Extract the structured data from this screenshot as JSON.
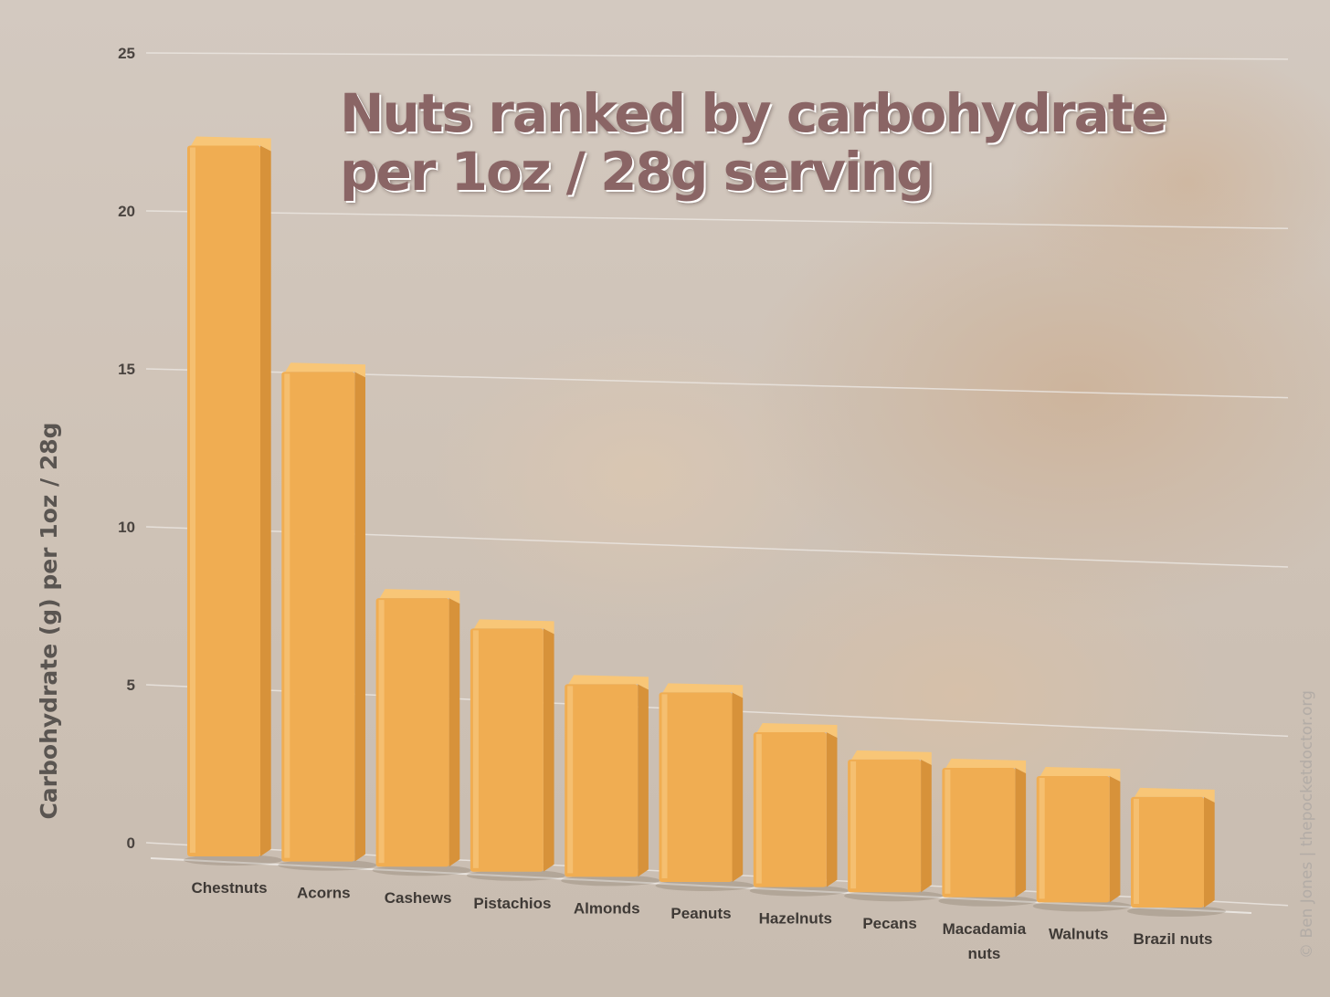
{
  "title_lines": [
    "Nuts ranked by carbohydrate",
    "per 1oz / 28g serving"
  ],
  "credit": "© Ben Jones | thepocketdoctor.org",
  "colors": {
    "bar_front": "#f0ad52",
    "bar_side": "#d7923a",
    "bar_top": "#f8c677",
    "title": "#8a6565",
    "gridline": "#ebe6e1"
  },
  "chart_data": {
    "type": "bar",
    "title": "Nuts ranked by carbohydrate per 1oz / 28g serving",
    "xlabel": "",
    "ylabel": "Carbohydrate (g) per 1oz / 28g",
    "ylim": [
      0,
      25
    ],
    "yticks": [
      0,
      5,
      10,
      15,
      20,
      25
    ],
    "grid": true,
    "categories": [
      "Chestnuts",
      "Acorns",
      "Cashews",
      "Pistachios",
      "Almonds",
      "Peanuts",
      "Hazelnuts",
      "Pecans",
      "Macadamia nuts",
      "Walnuts",
      "Brazil nuts"
    ],
    "category_lines": [
      [
        "Chestnuts"
      ],
      [
        "Acorns"
      ],
      [
        "Cashews"
      ],
      [
        "Pistachios"
      ],
      [
        "Almonds"
      ],
      [
        "Peanuts"
      ],
      [
        "Hazelnuts"
      ],
      [
        "Pecans"
      ],
      [
        "Macadamia",
        "nuts"
      ],
      [
        "Walnuts"
      ],
      [
        "Brazil nuts"
      ]
    ],
    "values": [
      22.5,
      15.5,
      8.5,
      7.7,
      6.1,
      6.0,
      4.9,
      4.2,
      4.1,
      4.0,
      3.5
    ]
  }
}
